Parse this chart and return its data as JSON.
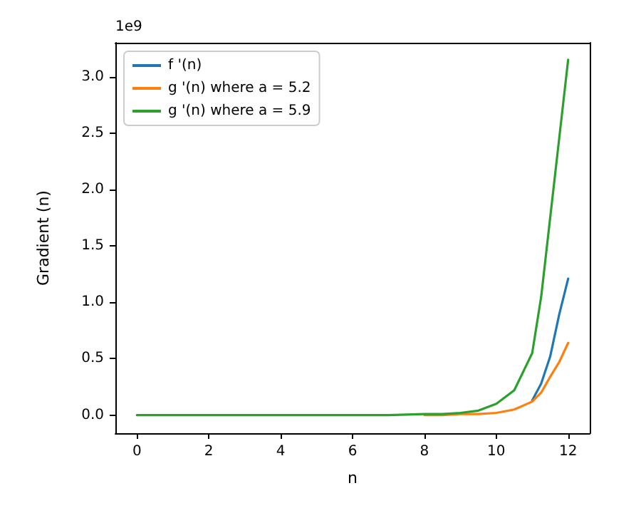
{
  "chart_data": {
    "type": "line",
    "xlabel": "n",
    "ylabel": "Gradient (n)",
    "annotations": [
      "1e9"
    ],
    "x": [
      0,
      1,
      2,
      3,
      4,
      5,
      6,
      7,
      8,
      8.5,
      9,
      9.5,
      10,
      10.5,
      11,
      11.25,
      11.5,
      11.75,
      12
    ],
    "series": [
      {
        "name": "f '(n)",
        "color": "#1f77b4",
        "values": [
          null,
          null,
          null,
          null,
          null,
          null,
          null,
          null,
          null,
          null,
          null,
          null,
          null,
          null,
          0.13,
          0.28,
          0.52,
          0.89,
          1.21
        ]
      },
      {
        "name": "g '(n) where a = 5.2",
        "color": "#ff7f0e",
        "values": [
          null,
          null,
          null,
          null,
          null,
          null,
          null,
          null,
          0,
          0,
          0.01,
          0.01,
          0.02,
          0.05,
          0.12,
          0.2,
          0.34,
          0.47,
          0.64
        ]
      },
      {
        "name": "g '(n) where a = 5.9",
        "color": "#2ca02c",
        "values": [
          0,
          0,
          0,
          0,
          0,
          0,
          0,
          0,
          0.01,
          0.01,
          0.02,
          0.04,
          0.1,
          0.22,
          0.55,
          1.05,
          1.75,
          2.45,
          3.15
        ]
      }
    ],
    "xlim": [
      -0.6,
      12.6
    ],
    "xticks": [
      0,
      2,
      4,
      6,
      8,
      10,
      12
    ],
    "ylim": [
      -0.16,
      3.3
    ],
    "yticks": [
      {
        "value": 0,
        "label": "0.0"
      },
      {
        "value": 0.5,
        "label": "0.5"
      },
      {
        "value": 1,
        "label": "1.0"
      },
      {
        "value": 1.5,
        "label": "1.5"
      },
      {
        "value": 2,
        "label": "2.0"
      },
      {
        "value": 2.5,
        "label": "2.5"
      },
      {
        "value": 3,
        "label": "3.0"
      }
    ],
    "grid": false,
    "legend": "top left",
    "marker": "none",
    "line_style": "solid"
  }
}
